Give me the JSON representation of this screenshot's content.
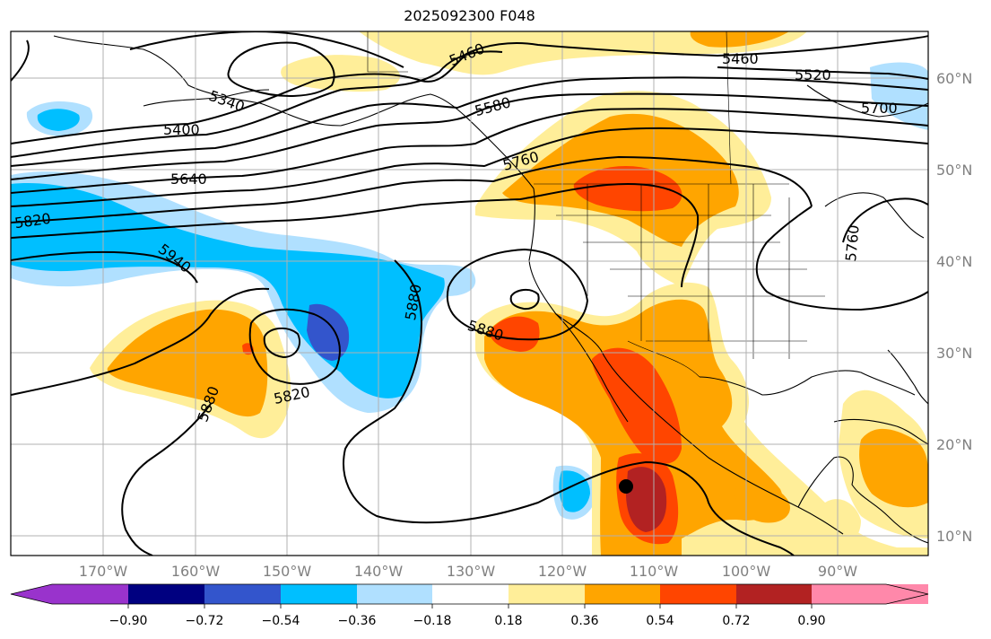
{
  "title": "2025092300 F048",
  "lon_labels": [
    "170°W",
    "160°W",
    "150°W",
    "140°W",
    "130°W",
    "120°W",
    "110°W",
    "100°W",
    "90°W"
  ],
  "lat_labels": [
    "60°N",
    "50°N",
    "40°N",
    "30°N",
    "20°N",
    "10°N"
  ],
  "contour_labels": [
    "5460",
    "5460",
    "5520",
    "5580",
    "5700",
    "5400",
    "5340",
    "5760",
    "5640",
    "5820",
    "5940",
    "5760",
    "5880",
    "5880",
    "5880",
    "5820"
  ],
  "colorbar": {
    "tick_labels": [
      "−0.90",
      "−0.72",
      "−0.54",
      "−0.36",
      "−0.18",
      "0.18",
      "0.36",
      "0.54",
      "0.72",
      "0.90"
    ],
    "colors": [
      "#9933cc",
      "#000080",
      "#3355cc",
      "#00bfff",
      "#b0e0ff",
      "#ffffff",
      "#ffee99",
      "#ffa500",
      "#ff4500",
      "#b22222",
      "#ff88aa"
    ]
  },
  "marker": "storm-center-marker"
}
